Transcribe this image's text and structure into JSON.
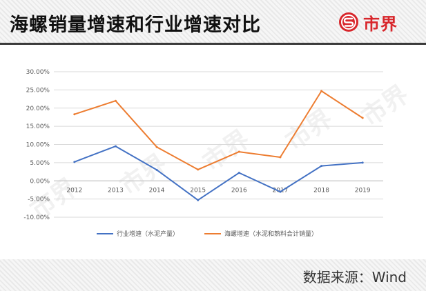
{
  "header": {
    "title": "海螺销量增速和行业增速对比",
    "logo_text": "市界",
    "logo_icon": "brand-s-circle-icon",
    "brand_color": "#d8262b"
  },
  "watermark": "市界",
  "footer": {
    "source": "数据来源：Wind"
  },
  "chart_data": {
    "type": "line",
    "title": "",
    "xlabel": "",
    "ylabel": "",
    "categories": [
      "2012",
      "2013",
      "2014",
      "2015",
      "2016",
      "2017",
      "2018",
      "2019"
    ],
    "ylim": [
      -0.1,
      0.3
    ],
    "yticks": [
      "-10.00%",
      "-5.00%",
      "0.00%",
      "5.00%",
      "10.00%",
      "15.00%",
      "20.00%",
      "25.00%",
      "30.00%"
    ],
    "grid": true,
    "legend_position": "bottom",
    "series": [
      {
        "name": "行业增速（水泥产量）",
        "color": "#4472c4",
        "values": [
          0.052,
          0.095,
          0.03,
          -0.053,
          0.022,
          -0.03,
          0.041,
          0.05
        ]
      },
      {
        "name": "海螺增速（水泥和熟料合计销量）",
        "color": "#ed7d31",
        "values": [
          0.183,
          0.22,
          0.093,
          0.031,
          0.08,
          0.065,
          0.247,
          0.173
        ]
      }
    ]
  }
}
